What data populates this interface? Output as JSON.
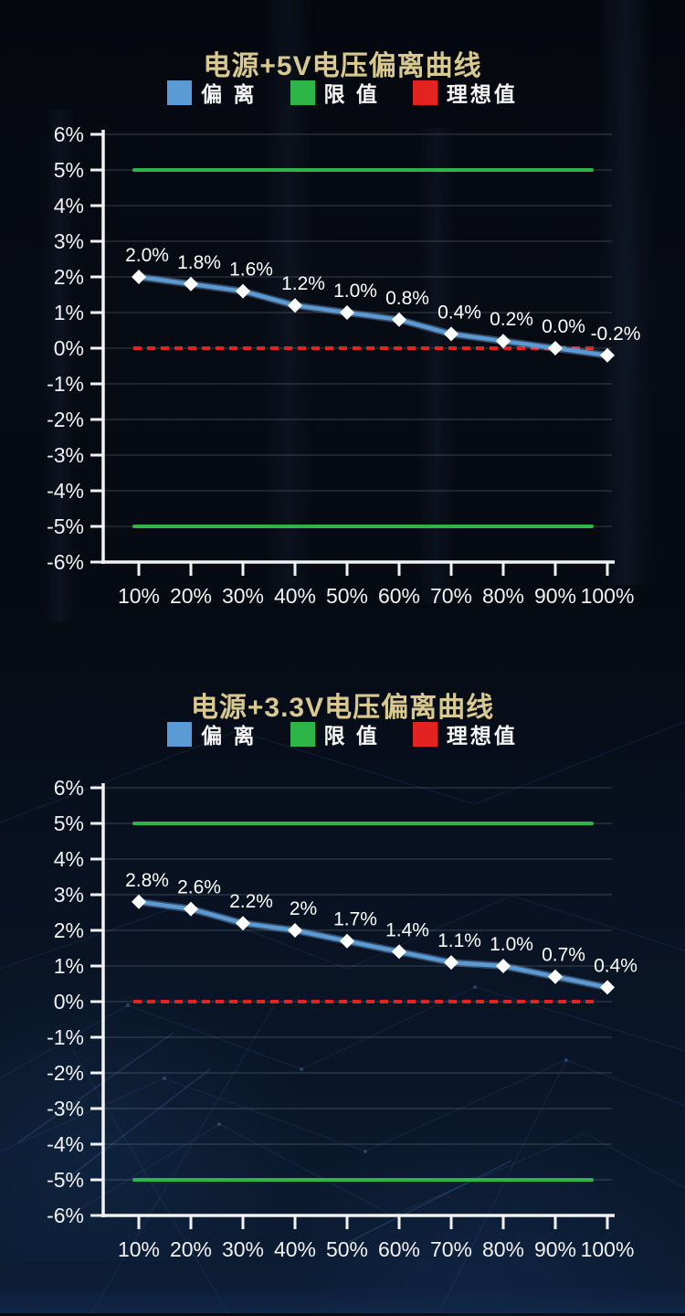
{
  "colors": {
    "deviation_blue": "#5B9BD5",
    "limit_green": "#2DB54A",
    "ideal_red": "#E32222",
    "title_gold": "#D9C98E",
    "text_white": "#F5F5F5"
  },
  "chart_data": [
    {
      "type": "line",
      "title": "电源+5V电压偏离曲线",
      "legend": [
        {
          "name": "偏 离",
          "color": "#5B9BD5"
        },
        {
          "name": "限 值",
          "color": "#2DB54A"
        },
        {
          "name": "理想值",
          "color": "#E32222"
        }
      ],
      "categories": [
        "10%",
        "20%",
        "30%",
        "40%",
        "50%",
        "60%",
        "70%",
        "80%",
        "90%",
        "100%"
      ],
      "deviation": {
        "values": [
          2.0,
          1.8,
          1.6,
          1.2,
          1.0,
          0.8,
          0.4,
          0.2,
          0.0,
          -0.2
        ],
        "labels": [
          "2.0%",
          "1.8%",
          "1.6%",
          "1.2%",
          "1.0%",
          "0.8%",
          "0.4%",
          "0.2%",
          "0.0%",
          "-0.2%"
        ]
      },
      "limit_upper": 5,
      "limit_lower": -5,
      "ideal": 0,
      "ylim": [
        -6,
        6
      ],
      "y_tick_labels": [
        "6%",
        "5%",
        "4%",
        "3%",
        "2%",
        "1%",
        "0%",
        "-1%",
        "-2%",
        "-3%",
        "-4%",
        "-5%",
        "-6%"
      ],
      "grid": true,
      "legend_position": "top"
    },
    {
      "type": "line",
      "title": "电源+3.3V电压偏离曲线",
      "legend": [
        {
          "name": "偏 离",
          "color": "#5B9BD5"
        },
        {
          "name": "限 值",
          "color": "#2DB54A"
        },
        {
          "name": "理想值",
          "color": "#E32222"
        }
      ],
      "categories": [
        "10%",
        "20%",
        "30%",
        "40%",
        "50%",
        "60%",
        "70%",
        "80%",
        "90%",
        "100%"
      ],
      "deviation": {
        "values": [
          2.8,
          2.6,
          2.2,
          2.0,
          1.7,
          1.4,
          1.1,
          1.0,
          0.7,
          0.4
        ],
        "labels": [
          "2.8%",
          "2.6%",
          "2.2%",
          "2%",
          "1.7%",
          "1.4%",
          "1.1%",
          "1.0%",
          "0.7%",
          "0.4%"
        ]
      },
      "limit_upper": 5,
      "limit_lower": -5,
      "ideal": 0,
      "ylim": [
        -6,
        6
      ],
      "y_tick_labels": [
        "6%",
        "5%",
        "4%",
        "3%",
        "2%",
        "1%",
        "0%",
        "-1%",
        "-2%",
        "-3%",
        "-4%",
        "-5%",
        "-6%"
      ],
      "grid": true,
      "legend_position": "top"
    }
  ]
}
